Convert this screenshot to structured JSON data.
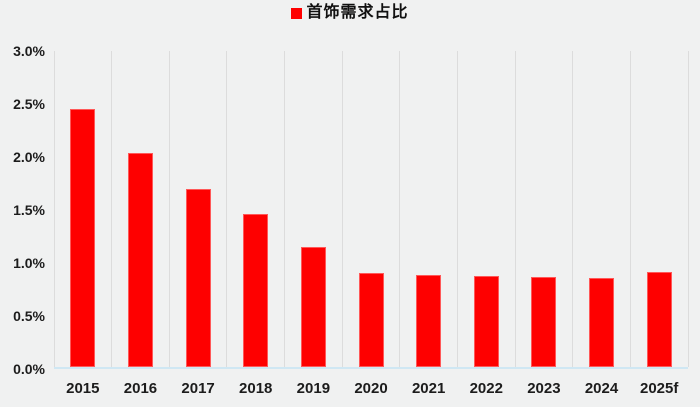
{
  "page": {
    "background_color": "#f0f1f1",
    "text_color": "#1c1c1c"
  },
  "legend": {
    "label": "首饰需求占比",
    "marker_color": "#fe0000"
  },
  "chart_data": {
    "type": "bar",
    "title": "",
    "xlabel": "",
    "ylabel": "",
    "series_name": "首饰需求占比",
    "categories": [
      "2015",
      "2016",
      "2017",
      "2018",
      "2019",
      "2020",
      "2021",
      "2022",
      "2023",
      "2024",
      "2025f"
    ],
    "values": [
      2.43,
      2.02,
      1.68,
      1.44,
      1.13,
      0.89,
      0.87,
      0.86,
      0.85,
      0.84,
      0.9
    ],
    "unit": "%",
    "ylim": [
      0.0,
      3.0
    ],
    "ytick_step": 0.5,
    "ytick_labels": [
      "0.0%",
      "0.5%",
      "1.0%",
      "1.5%",
      "2.0%",
      "2.5%",
      "3.0%"
    ],
    "grid": "vertical-only",
    "legend_position": "top-center",
    "bar_color": "#fe0000",
    "gridline_color": "#dcdcdc",
    "baseline_color": "#cfe7f3"
  }
}
